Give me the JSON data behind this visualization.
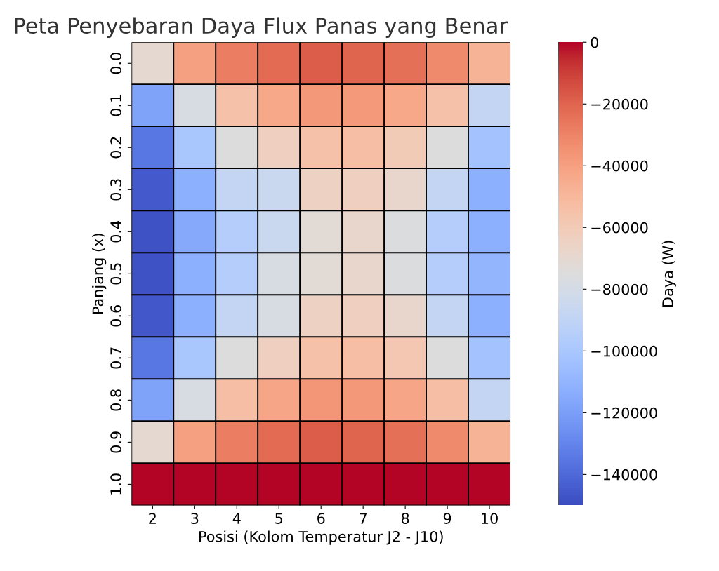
{
  "chart_data": {
    "type": "heatmap",
    "title": "Peta Penyebaran Daya Flux Panas yang Benar",
    "xlabel": "Posisi (Kolom Temperatur J2 - J10)",
    "ylabel": "Panjang (x)",
    "clabel": "Daya (W)",
    "categories": [
      "2",
      "3",
      "4",
      "5",
      "6",
      "7",
      "8",
      "9",
      "10"
    ],
    "y_categories": [
      "0.0",
      "0.1",
      "0.2",
      "0.3",
      "0.4",
      "0.5",
      "0.6",
      "0.7",
      "0.8",
      "0.9",
      "1.0"
    ],
    "cells": [
      [
        -70000,
        -40000,
        -28000,
        -22000,
        -18000,
        -20000,
        -24000,
        -32000,
        -48000
      ],
      [
        -118000,
        -78000,
        -55000,
        -43000,
        -37000,
        -38000,
        -43000,
        -55000,
        -88000
      ],
      [
        -135000,
        -100000,
        -75000,
        -63000,
        -55000,
        -53000,
        -60000,
        -75000,
        -103000
      ],
      [
        -145000,
        -112000,
        -88000,
        -85000,
        -65000,
        -63000,
        -68000,
        -88000,
        -112000
      ],
      [
        -148000,
        -115000,
        -95000,
        -85000,
        -72000,
        -68000,
        -76000,
        -95000,
        -113000
      ],
      [
        -148000,
        -113000,
        -95000,
        -78000,
        -72000,
        -68000,
        -76000,
        -95000,
        -110000
      ],
      [
        -146000,
        -112000,
        -88000,
        -78000,
        -65000,
        -63000,
        -68000,
        -88000,
        -112000
      ],
      [
        -135000,
        -100000,
        -75000,
        -63000,
        -55000,
        -53000,
        -58000,
        -75000,
        -103000
      ],
      [
        -118000,
        -78000,
        -53000,
        -42000,
        -36000,
        -37000,
        -42000,
        -53000,
        -88000
      ],
      [
        -70000,
        -40000,
        -28000,
        -22000,
        -18000,
        -20000,
        -24000,
        -32000,
        -48000
      ],
      [
        0,
        0,
        0,
        0,
        0,
        0,
        0,
        0,
        0
      ]
    ],
    "clim": [
      -150000,
      0
    ],
    "cticks": [
      {
        "value": 0,
        "label": "0"
      },
      {
        "value": -20000,
        "label": "−20000"
      },
      {
        "value": -40000,
        "label": "−40000"
      },
      {
        "value": -60000,
        "label": "−60000"
      },
      {
        "value": -80000,
        "label": "−80000"
      },
      {
        "value": -100000,
        "label": "−100000"
      },
      {
        "value": -120000,
        "label": "−120000"
      },
      {
        "value": -140000,
        "label": "−140000"
      }
    ]
  }
}
